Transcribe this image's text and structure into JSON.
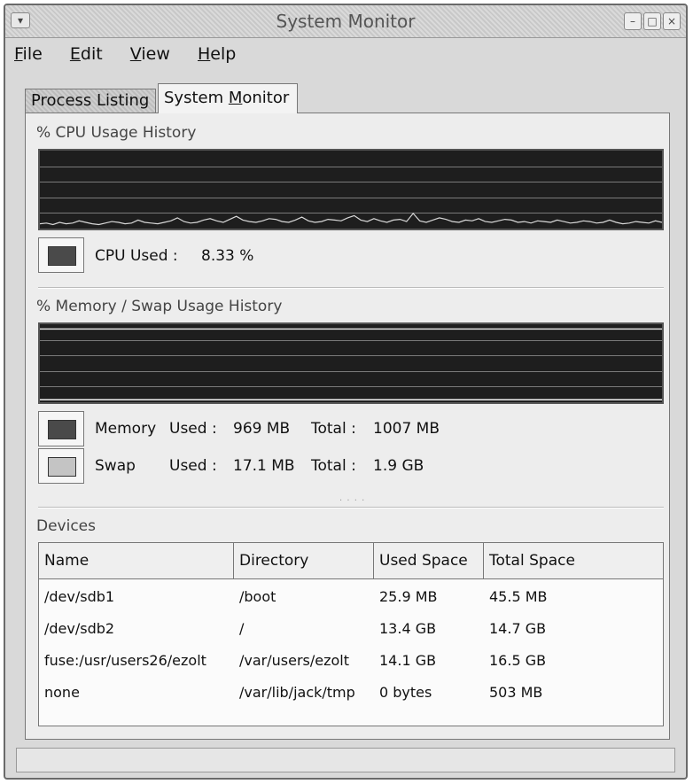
{
  "window": {
    "title": "System Monitor"
  },
  "menubar": {
    "items": [
      {
        "first": "F",
        "rest": "ile"
      },
      {
        "first": "E",
        "rest": "dit"
      },
      {
        "first": "V",
        "rest": "iew"
      },
      {
        "first": "H",
        "rest": "elp"
      }
    ]
  },
  "tabs": {
    "process_listing": "Process Listing",
    "system_monitor_pre": "System ",
    "system_monitor_u": "M",
    "system_monitor_post": "onitor"
  },
  "cpu": {
    "title": "% CPU Usage History",
    "label": "CPU Used :",
    "value": "8.33 %",
    "color": "#4a4a4a",
    "history_percent": [
      4,
      5,
      3,
      6,
      4,
      5,
      8,
      6,
      4,
      3,
      5,
      7,
      6,
      4,
      5,
      9,
      6,
      5,
      4,
      6,
      8,
      12,
      7,
      5,
      6,
      9,
      11,
      8,
      6,
      10,
      14,
      9,
      7,
      6,
      8,
      11,
      10,
      7,
      6,
      9,
      13,
      8,
      6,
      7,
      10,
      9,
      8,
      12,
      15,
      9,
      7,
      11,
      8,
      6,
      9,
      10,
      7,
      18,
      8,
      6,
      9,
      12,
      10,
      7,
      6,
      9,
      8,
      11,
      7,
      6,
      8,
      10,
      9,
      6,
      7,
      5,
      8,
      7,
      6,
      9,
      7,
      5,
      6,
      8,
      7,
      5,
      6,
      9,
      6,
      4,
      5,
      7,
      6,
      5,
      8,
      6
    ]
  },
  "memory": {
    "title": "% Memory / Swap Usage History",
    "mem_label": "Memory",
    "mem_used_label": "Used :",
    "mem_used": "969 MB",
    "mem_total_label": "Total :",
    "mem_total": "1007 MB",
    "mem_color": "#4a4a4a",
    "swap_label": "Swap",
    "swap_used_label": "Used :",
    "swap_used": "17.1 MB",
    "swap_total_label": "Total :",
    "swap_total": "1.9 GB",
    "swap_color": "#c4c4c4",
    "mem_percent": 96,
    "swap_percent": 1
  },
  "devices": {
    "title": "Devices",
    "columns": [
      "Name",
      "Directory",
      "Used Space",
      "Total Space"
    ],
    "rows": [
      [
        "/dev/sdb1",
        "/boot",
        "25.9 MB",
        "45.5 MB"
      ],
      [
        "/dev/sdb2",
        "/",
        "13.4 GB",
        "14.7 GB"
      ],
      [
        "fuse:/usr/users26/ezolt",
        "/var/users/ezolt",
        "14.1 GB",
        "16.5 GB"
      ],
      [
        "none",
        "/var/lib/jack/tmp",
        "0 bytes",
        "503 MB"
      ]
    ]
  }
}
